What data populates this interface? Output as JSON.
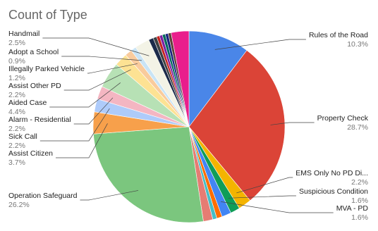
{
  "chart_data": {
    "type": "pie",
    "title": "Count of Type",
    "categories": [
      "Rules of the Road",
      "Property Check",
      "EMS Only No PD Di...",
      "Suspicious Condition",
      "MVA - PD",
      null,
      null,
      null,
      "Operation Safeguard",
      "Assist Citizen",
      "Sick Call",
      "Alarm - Residential",
      "Aided Case",
      "Assist Other PD",
      "Illegally Parked Vehicle",
      "Adopt a School",
      "Handmail",
      null,
      null,
      null,
      null,
      null,
      null,
      null,
      null
    ],
    "values": [
      10.3,
      28.7,
      2.2,
      1.6,
      1.6,
      0.9,
      0.7,
      1.6,
      26.2,
      3.7,
      2.2,
      2.2,
      4.4,
      2.2,
      1.2,
      0.9,
      2.5,
      0.8,
      0.6,
      0.5,
      0.5,
      0.5,
      0.5,
      0.5,
      3.0
    ],
    "value_labels": [
      "10.3%",
      "28.7%",
      "2.2%",
      "1.6%",
      "1.6%",
      null,
      null,
      null,
      "26.2%",
      "3.7%",
      "2.2%",
      "2.2%",
      "4.4%",
      "2.2%",
      "1.2%",
      "0.9%",
      "2.5%",
      null,
      null,
      null,
      null,
      null,
      null,
      null,
      null
    ],
    "colors": [
      "#4a86e8",
      "#db4437",
      "#f4b400",
      "#0f9d58",
      "#4285f4",
      "#ff6d00",
      "#46bdc6",
      "#e67c73",
      "#7bc67e",
      "#f7a04b",
      "#aecbfa",
      "#f4b6c2",
      "#b7e1b5",
      "#fde293",
      "#f9cb9c",
      "#c9e4f5",
      "#f3f3e6",
      "#1b2a4a",
      "#3c4043",
      "#c5221f",
      "#7b1fa2",
      "#00695c",
      "#1a237e",
      "#5d4037",
      "#e91e8c"
    ]
  }
}
